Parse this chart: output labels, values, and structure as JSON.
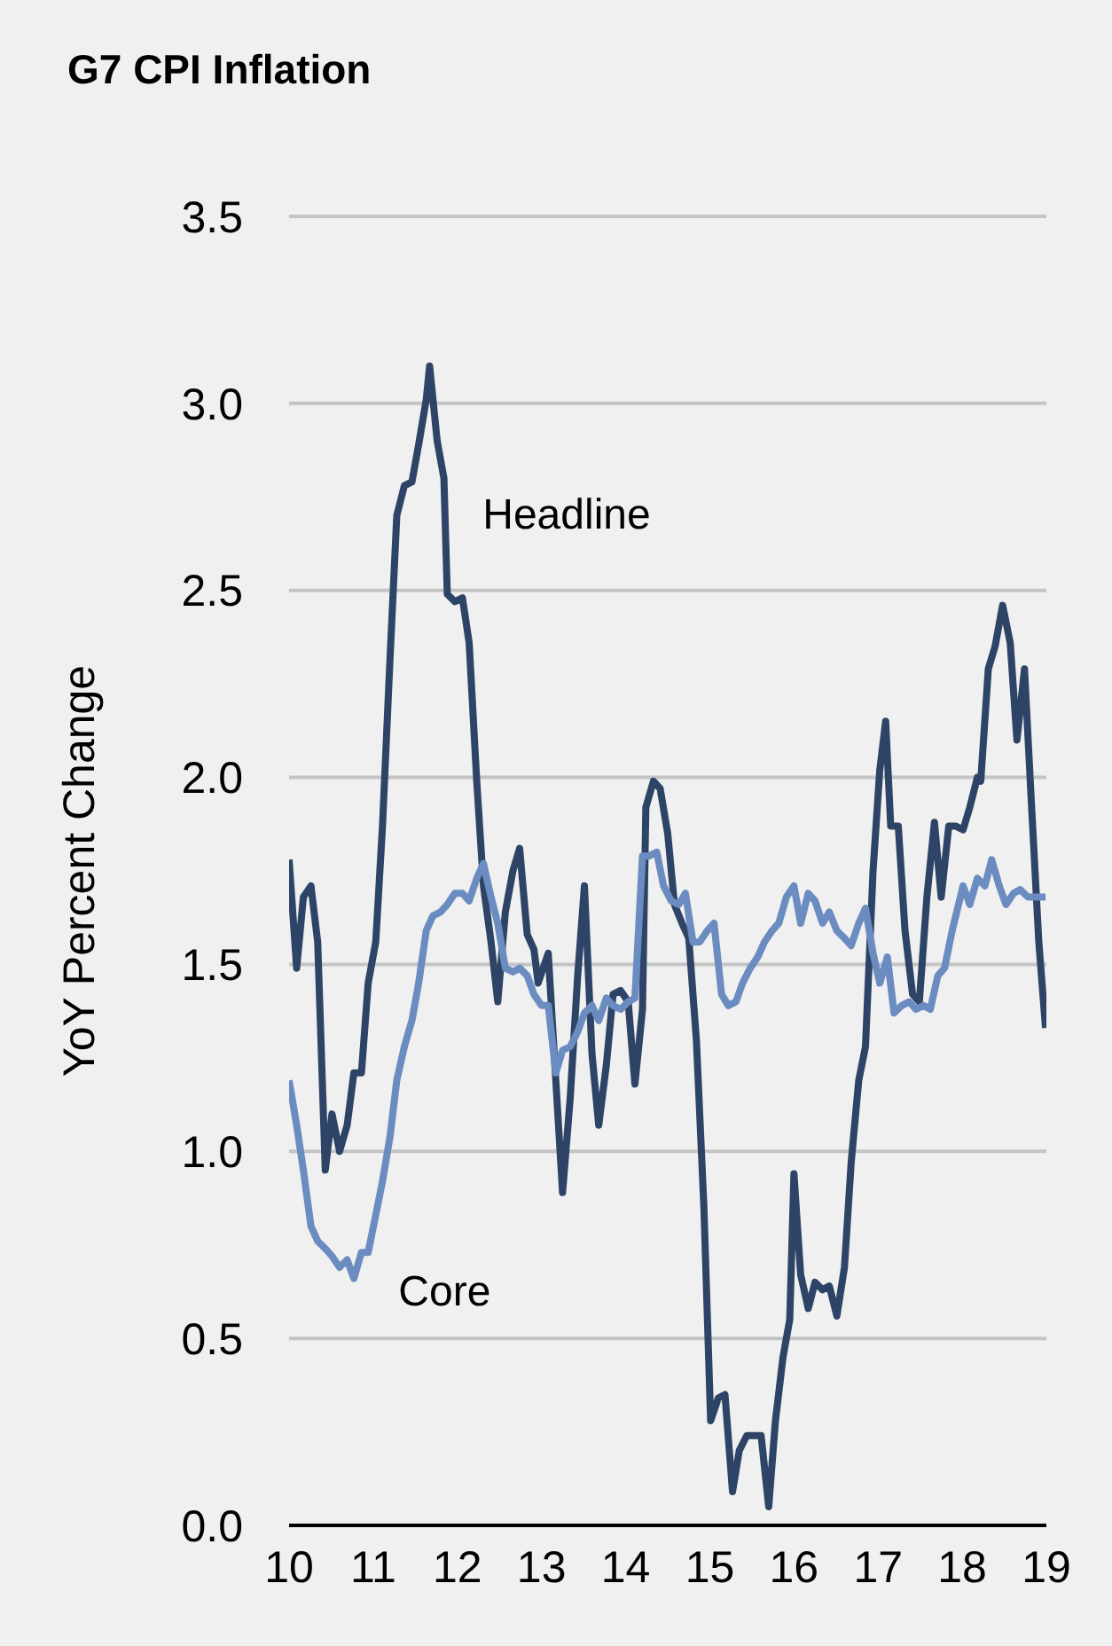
{
  "chart_data": {
    "type": "line",
    "title": "G7 CPI Inflation",
    "ylabel": "YoY Percent Change",
    "xlim": [
      10,
      19
    ],
    "xticks": [
      10,
      11,
      12,
      13,
      14,
      15,
      16,
      17,
      18,
      19
    ],
    "ylim": [
      0,
      3.5
    ],
    "yticks": [
      {
        "value": 0,
        "label": "0.0"
      },
      {
        "value": 0.5,
        "label": "0.5"
      },
      {
        "value": 1,
        "label": "1.0"
      },
      {
        "value": 1.5,
        "label": "1.5"
      },
      {
        "value": 2,
        "label": "2.0"
      },
      {
        "value": 2.5,
        "label": "2.5"
      },
      {
        "value": 3,
        "label": "3.0"
      },
      {
        "value": 3.5,
        "label": "3.5"
      }
    ],
    "grid": "y",
    "marker": "none",
    "line_style": "solid",
    "series": [
      {
        "name": "Headline",
        "color": "#2e4467",
        "x": [
          10.0,
          10.09,
          10.17,
          10.26,
          10.34,
          10.43,
          10.51,
          10.6,
          10.69,
          10.77,
          10.86,
          10.94,
          11.03,
          11.11,
          11.2,
          11.28,
          11.37,
          11.46,
          11.54,
          11.63,
          11.67,
          11.76,
          11.84,
          11.88,
          11.97,
          12.06,
          12.14,
          12.23,
          12.31,
          12.4,
          12.48,
          12.57,
          12.66,
          12.74,
          12.83,
          12.91,
          12.96,
          13.08,
          13.17,
          13.25,
          13.34,
          13.43,
          13.51,
          13.6,
          13.68,
          13.77,
          13.85,
          13.94,
          14.03,
          14.11,
          14.2,
          14.24,
          14.33,
          14.41,
          14.5,
          14.58,
          14.67,
          14.75,
          14.84,
          14.93,
          15.01,
          15.1,
          15.18,
          15.27,
          15.35,
          15.44,
          15.52,
          15.61,
          15.7,
          15.78,
          15.87,
          15.95,
          16.0,
          16.08,
          16.17,
          16.25,
          16.34,
          16.42,
          16.51,
          16.6,
          16.68,
          16.77,
          16.85,
          16.94,
          17.02,
          17.09,
          17.15,
          17.24,
          17.32,
          17.41,
          17.49,
          17.58,
          17.67,
          17.75,
          17.84,
          17.92,
          18.01,
          18.09,
          18.18,
          18.22,
          18.31,
          18.39,
          18.48,
          18.57,
          18.65,
          18.74,
          18.82,
          18.91,
          18.99
        ],
        "values": [
          1.78,
          1.49,
          1.68,
          1.71,
          1.56,
          0.95,
          1.1,
          1.0,
          1.07,
          1.21,
          1.21,
          1.45,
          1.56,
          1.87,
          2.32,
          2.7,
          2.78,
          2.79,
          2.89,
          3.01,
          3.1,
          2.9,
          2.8,
          2.49,
          2.47,
          2.48,
          2.36,
          1.99,
          1.71,
          1.56,
          1.4,
          1.64,
          1.75,
          1.81,
          1.58,
          1.54,
          1.45,
          1.53,
          1.19,
          0.89,
          1.14,
          1.47,
          1.71,
          1.26,
          1.07,
          1.23,
          1.42,
          1.43,
          1.4,
          1.18,
          1.38,
          1.92,
          1.99,
          1.97,
          1.85,
          1.66,
          1.61,
          1.57,
          1.3,
          0.85,
          0.28,
          0.34,
          0.35,
          0.09,
          0.2,
          0.24,
          0.24,
          0.24,
          0.05,
          0.28,
          0.45,
          0.55,
          0.94,
          0.67,
          0.58,
          0.65,
          0.63,
          0.64,
          0.56,
          0.69,
          0.97,
          1.19,
          1.28,
          1.75,
          2.02,
          2.15,
          1.87,
          1.87,
          1.59,
          1.42,
          1.4,
          1.68,
          1.88,
          1.68,
          1.87,
          1.87,
          1.86,
          1.92,
          2.0,
          1.99,
          2.29,
          2.35,
          2.46,
          2.36,
          2.1,
          2.29,
          1.94,
          1.56,
          1.33
        ]
      },
      {
        "name": "Core",
        "color": "#6b8cc0",
        "x": [
          10.0,
          10.09,
          10.17,
          10.26,
          10.34,
          10.43,
          10.51,
          10.6,
          10.69,
          10.77,
          10.86,
          10.94,
          11.03,
          11.11,
          11.2,
          11.28,
          11.37,
          11.46,
          11.54,
          11.63,
          11.71,
          11.8,
          11.88,
          11.97,
          12.06,
          12.14,
          12.23,
          12.31,
          12.4,
          12.48,
          12.57,
          12.66,
          12.74,
          12.83,
          12.91,
          13.0,
          13.08,
          13.17,
          13.25,
          13.34,
          13.43,
          13.51,
          13.6,
          13.68,
          13.77,
          13.85,
          13.94,
          14.03,
          14.11,
          14.2,
          14.28,
          14.37,
          14.45,
          14.54,
          14.63,
          14.71,
          14.8,
          14.88,
          14.97,
          15.05,
          15.14,
          15.22,
          15.31,
          15.39,
          15.48,
          15.57,
          15.65,
          15.74,
          15.82,
          15.91,
          16.0,
          16.08,
          16.17,
          16.25,
          16.34,
          16.42,
          16.51,
          16.6,
          16.68,
          16.77,
          16.85,
          16.94,
          17.02,
          17.11,
          17.19,
          17.28,
          17.37,
          17.45,
          17.54,
          17.62,
          17.71,
          17.79,
          17.88,
          18.01,
          18.09,
          18.18,
          18.27,
          18.35,
          18.44,
          18.52,
          18.61,
          18.69,
          18.78,
          18.87,
          18.99
        ],
        "values": [
          1.19,
          1.07,
          0.95,
          0.8,
          0.76,
          0.74,
          0.72,
          0.69,
          0.71,
          0.66,
          0.73,
          0.73,
          0.83,
          0.92,
          1.04,
          1.19,
          1.28,
          1.35,
          1.45,
          1.59,
          1.63,
          1.64,
          1.66,
          1.69,
          1.69,
          1.67,
          1.73,
          1.77,
          1.68,
          1.61,
          1.49,
          1.48,
          1.49,
          1.47,
          1.42,
          1.39,
          1.39,
          1.21,
          1.27,
          1.28,
          1.32,
          1.37,
          1.39,
          1.35,
          1.41,
          1.39,
          1.38,
          1.4,
          1.41,
          1.79,
          1.79,
          1.8,
          1.71,
          1.67,
          1.66,
          1.69,
          1.56,
          1.56,
          1.59,
          1.61,
          1.42,
          1.39,
          1.4,
          1.45,
          1.49,
          1.52,
          1.56,
          1.59,
          1.61,
          1.68,
          1.71,
          1.61,
          1.69,
          1.67,
          1.61,
          1.64,
          1.59,
          1.57,
          1.55,
          1.61,
          1.65,
          1.53,
          1.45,
          1.52,
          1.37,
          1.39,
          1.4,
          1.38,
          1.39,
          1.38,
          1.47,
          1.49,
          1.59,
          1.71,
          1.66,
          1.73,
          1.71,
          1.78,
          1.71,
          1.66,
          1.69,
          1.7,
          1.68,
          1.68,
          1.68
        ]
      }
    ]
  }
}
